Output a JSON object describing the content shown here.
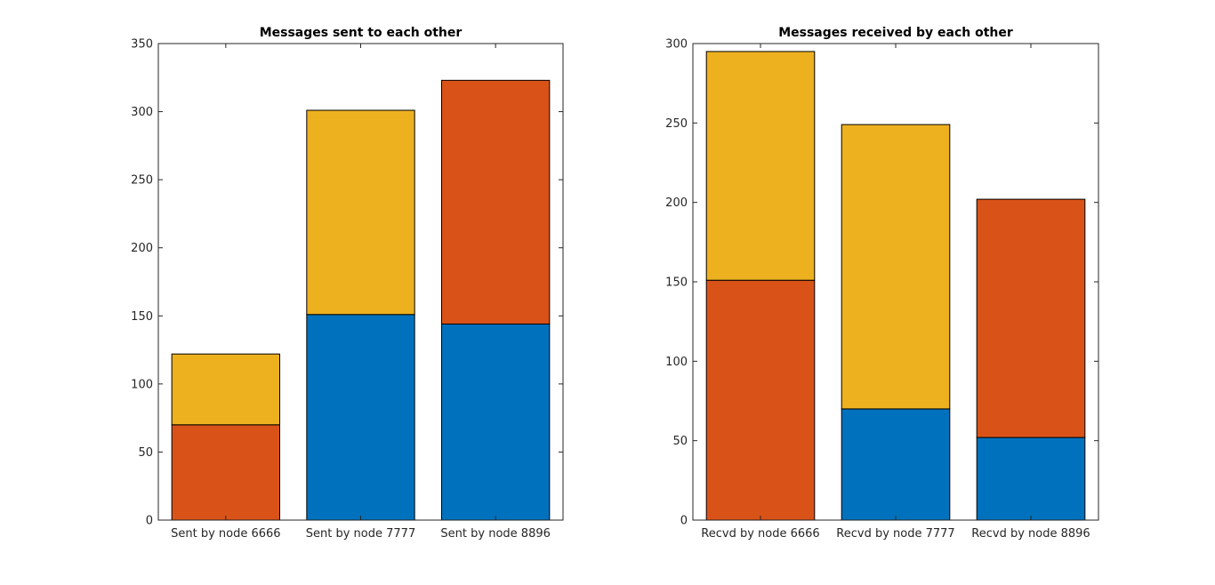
{
  "chart_data": [
    {
      "type": "bar",
      "stacked": true,
      "title": "Messages sent to each other",
      "xlabel": "",
      "ylabel": "",
      "categories": [
        "Sent by node 6666",
        "Sent by node 7777",
        "Sent by node 8896"
      ],
      "series": [
        {
          "color": "#0072BD",
          "values": [
            0,
            151,
            144
          ]
        },
        {
          "color": "#D95319",
          "values": [
            70,
            0,
            179
          ]
        },
        {
          "color": "#EDB120",
          "values": [
            52,
            150,
            0
          ]
        }
      ],
      "ylim": [
        0,
        350
      ],
      "yticks": [
        0,
        50,
        100,
        150,
        200,
        250,
        300,
        350
      ],
      "grid": false,
      "legend": "none"
    },
    {
      "type": "bar",
      "stacked": true,
      "title": "Messages received by each other",
      "xlabel": "",
      "ylabel": "",
      "categories": [
        "Recvd by node 6666",
        "Recvd by node 7777",
        "Recvd by node 8896"
      ],
      "series": [
        {
          "color": "#0072BD",
          "values": [
            0,
            70,
            52
          ]
        },
        {
          "color": "#D95319",
          "values": [
            151,
            0,
            150
          ]
        },
        {
          "color": "#EDB120",
          "values": [
            144,
            179,
            0
          ]
        }
      ],
      "ylim": [
        0,
        300
      ],
      "yticks": [
        0,
        50,
        100,
        150,
        200,
        250,
        300
      ],
      "grid": false,
      "legend": "none"
    }
  ]
}
